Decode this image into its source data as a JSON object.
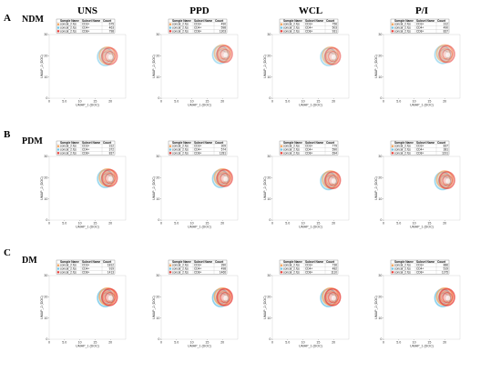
{
  "columns": [
    "UNS",
    "PPD",
    "WCL",
    "P/I"
  ],
  "rows": [
    {
      "letter": "A",
      "name": "NDM"
    },
    {
      "letter": "B",
      "name": "PDM"
    },
    {
      "letter": "C",
      "name": "DM"
    }
  ],
  "colors": {
    "cd3": "#f4a259",
    "cd4": "#6ec6e8",
    "cd8": "#e8413c"
  },
  "chart_data": {
    "type": "scatter",
    "xlabel": "UMAP_1 (DOC)",
    "ylabel": "UMAP_2 (DOC)",
    "xticks": [
      "0",
      "5.0",
      "10",
      "15",
      "20"
    ],
    "yticks": [
      "0",
      "10",
      "20",
      "30"
    ],
    "xlim": [
      0,
      25
    ],
    "ylim": [
      0,
      30
    ],
    "legend": {
      "headers": [
        "Sample Name",
        "Subset Name",
        "Count"
      ],
      "samples": [
        "concat_2.fcs",
        "concat_2.fcs",
        "concat_2.fcs"
      ],
      "subsets": [
        "CD3+",
        "CD4+",
        "CD8+"
      ]
    },
    "counts": [
      [
        [
          675,
          463,
          798
        ],
        [
          490,
          598,
          1303
        ],
        [
          756,
          503,
          931
        ],
        [
          312,
          490,
          837
        ]
      ],
      [
        [
          312,
          372,
          837
        ],
        [
          309,
          574,
          1281
        ],
        [
          779,
          590,
          694
        ],
        [
          837,
          381,
          1191
        ]
      ],
      [
        [
          1812,
          919,
          1413
        ],
        [
          390,
          498,
          1466
        ],
        [
          736,
          482,
          1110
        ],
        [
          886,
          519,
          1375
        ]
      ]
    ]
  }
}
